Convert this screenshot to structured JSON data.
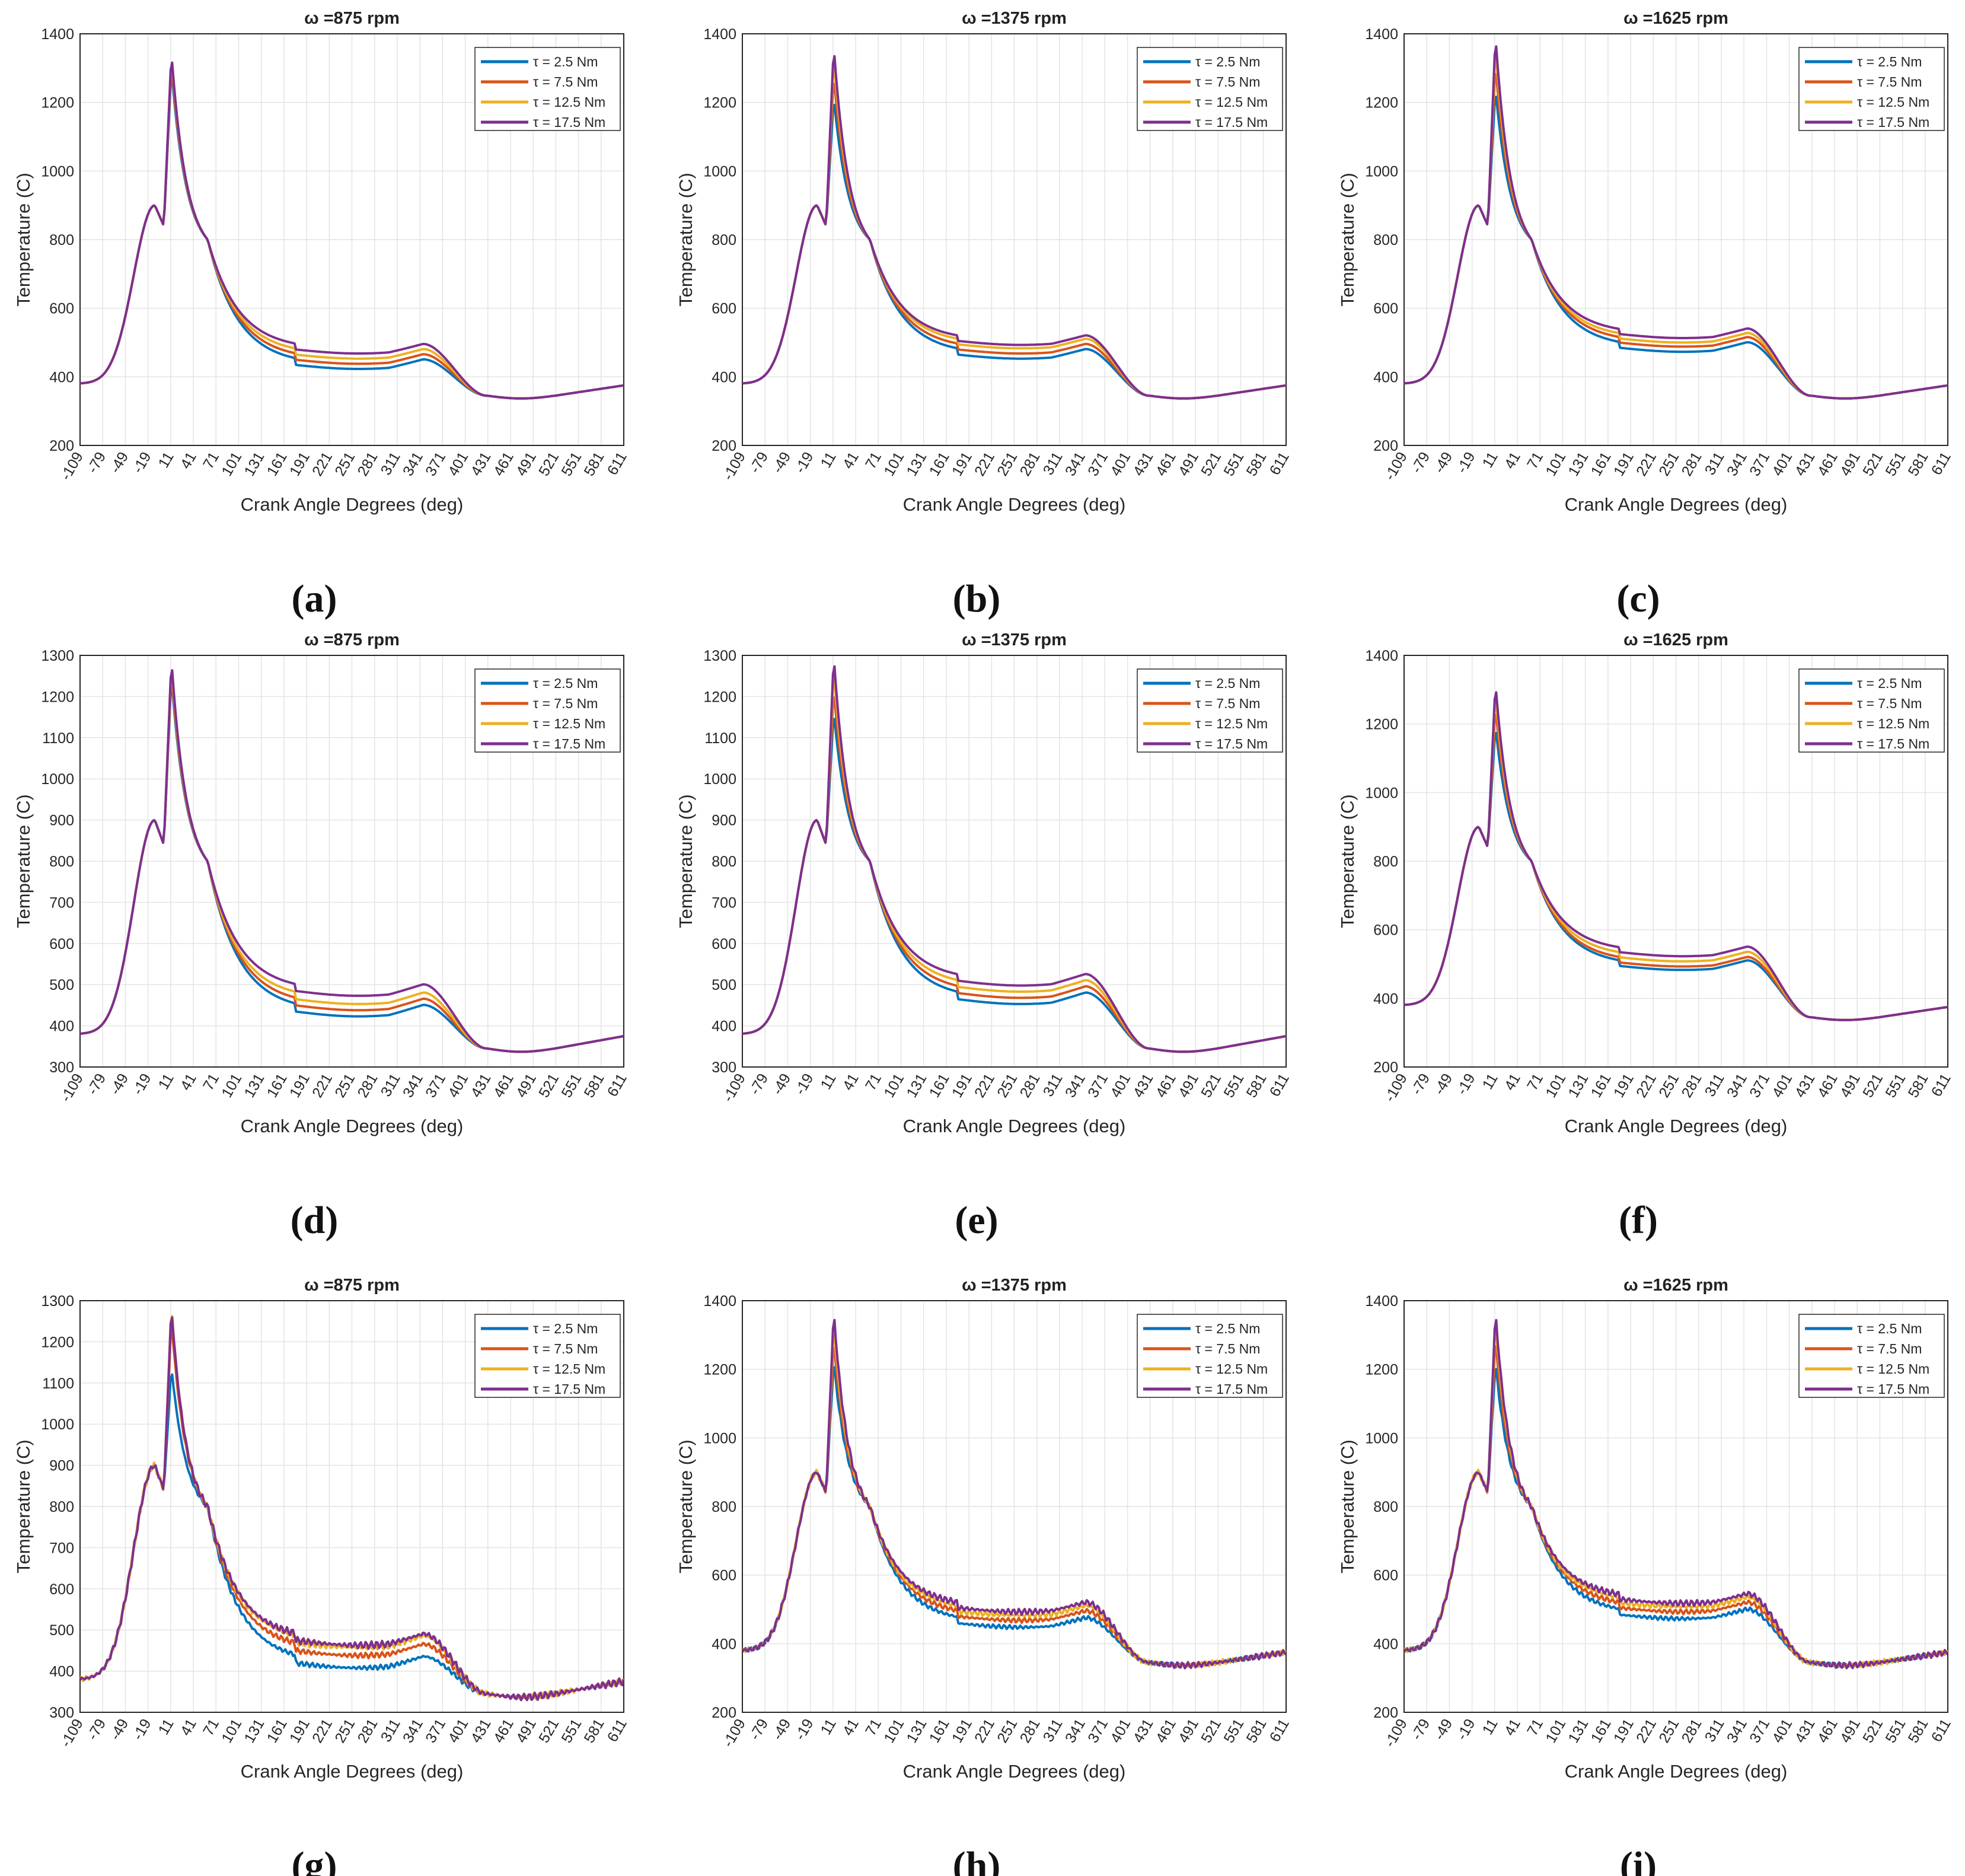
{
  "figure": {
    "series_names": [
      "τ = 2.5 Nm",
      "τ = 7.5 Nm",
      "τ = 12.5 Nm",
      "τ = 17.5 Nm"
    ],
    "series_colors": [
      "#0072BD",
      "#D95319",
      "#EDB120",
      "#7E2F8E"
    ]
  },
  "chart_data": [
    {
      "type": "line",
      "label": "(a)",
      "title": "ω =875 rpm",
      "xlabel": "Crank Angle Degrees (deg)",
      "ylabel": "Temperature (C)",
      "xlim": [
        -109,
        611
      ],
      "ylim": [
        200,
        1400
      ],
      "xticks": [
        -109,
        -79,
        -49,
        -19,
        11,
        41,
        71,
        101,
        131,
        161,
        191,
        221,
        251,
        281,
        311,
        341,
        371,
        401,
        431,
        461,
        491,
        521,
        551,
        581,
        611
      ],
      "yticks": [
        200,
        400,
        600,
        800,
        1000,
        1200,
        1400
      ],
      "legend_position": "top-right",
      "series": [
        {
          "name": "τ = 2.5 Nm",
          "peak": 1300
        },
        {
          "name": "τ = 7.5 Nm",
          "peak": 1320
        },
        {
          "name": "τ = 12.5 Nm",
          "peak": 1335
        },
        {
          "name": "τ = 17.5 Nm",
          "peak": 1345
        }
      ],
      "plateau": [
        435,
        450,
        465,
        480
      ]
    },
    {
      "type": "line",
      "label": "(b)",
      "title": "ω =1375 rpm",
      "xlabel": "Crank Angle Degrees (deg)",
      "ylabel": "Temperature (C)",
      "xlim": [
        -109,
        611
      ],
      "ylim": [
        200,
        1400
      ],
      "xticks": [
        -109,
        -79,
        -49,
        -19,
        11,
        41,
        71,
        101,
        131,
        161,
        191,
        221,
        251,
        281,
        311,
        341,
        371,
        401,
        431,
        461,
        491,
        521,
        551,
        581,
        611
      ],
      "yticks": [
        200,
        400,
        600,
        800,
        1000,
        1200,
        1400
      ],
      "legend_position": "top-right",
      "series": [
        {
          "name": "τ = 2.5 Nm",
          "peak": 1215
        },
        {
          "name": "τ = 7.5 Nm",
          "peak": 1280
        },
        {
          "name": "τ = 12.5 Nm",
          "peak": 1330
        },
        {
          "name": "τ = 17.5 Nm",
          "peak": 1365
        }
      ],
      "plateau": [
        465,
        480,
        495,
        505
      ]
    },
    {
      "type": "line",
      "label": "(c)",
      "title": "ω =1625 rpm",
      "xlabel": "Crank Angle Degrees (deg)",
      "ylabel": "Temperature (C)",
      "xlim": [
        -109,
        611
      ],
      "ylim": [
        200,
        1400
      ],
      "xticks": [
        -109,
        -79,
        -49,
        -19,
        11,
        41,
        71,
        101,
        131,
        161,
        191,
        221,
        251,
        281,
        311,
        341,
        371,
        401,
        431,
        461,
        491,
        521,
        551,
        581,
        611
      ],
      "yticks": [
        200,
        400,
        600,
        800,
        1000,
        1200,
        1400
      ],
      "legend_position": "top-right",
      "series": [
        {
          "name": "τ = 2.5 Nm",
          "peak": 1240
        },
        {
          "name": "τ = 7.5 Nm",
          "peak": 1310
        },
        {
          "name": "τ = 12.5 Nm",
          "peak": 1360
        },
        {
          "name": "τ = 17.5 Nm",
          "peak": 1395
        }
      ],
      "plateau": [
        485,
        500,
        512,
        525
      ]
    },
    {
      "type": "line",
      "label": "(d)",
      "title": "ω =875 rpm",
      "xlabel": "Crank Angle Degrees (deg)",
      "ylabel": "Temperature (C)",
      "xlim": [
        -109,
        611
      ],
      "ylim": [
        300,
        1300
      ],
      "xticks": [
        -109,
        -79,
        -49,
        -19,
        11,
        41,
        71,
        101,
        131,
        161,
        191,
        221,
        251,
        281,
        311,
        341,
        371,
        401,
        431,
        461,
        491,
        521,
        551,
        581,
        611
      ],
      "yticks": [
        300,
        400,
        500,
        600,
        700,
        800,
        900,
        1000,
        1100,
        1200,
        1300
      ],
      "legend_position": "top-right",
      "series": [
        {
          "name": "τ = 2.5 Nm",
          "peak": 1250
        },
        {
          "name": "τ = 7.5 Nm",
          "peak": 1265
        },
        {
          "name": "τ = 12.5 Nm",
          "peak": 1278
        },
        {
          "name": "τ = 17.5 Nm",
          "peak": 1290
        }
      ],
      "plateau": [
        435,
        450,
        465,
        485
      ]
    },
    {
      "type": "line",
      "label": "(e)",
      "title": "ω =1375 rpm",
      "xlabel": "Crank Angle Degrees (deg)",
      "ylabel": "Temperature (C)",
      "xlim": [
        -109,
        611
      ],
      "ylim": [
        300,
        1300
      ],
      "xticks": [
        -109,
        -79,
        -49,
        -19,
        11,
        41,
        71,
        101,
        131,
        161,
        191,
        221,
        251,
        281,
        311,
        341,
        371,
        401,
        431,
        461,
        491,
        521,
        551,
        581,
        611
      ],
      "yticks": [
        300,
        400,
        500,
        600,
        700,
        800,
        900,
        1000,
        1100,
        1200,
        1300
      ],
      "legend_position": "top-right",
      "series": [
        {
          "name": "τ = 2.5 Nm",
          "peak": 1165
        },
        {
          "name": "τ = 7.5 Nm",
          "peak": 1220
        },
        {
          "name": "τ = 12.5 Nm",
          "peak": 1265
        },
        {
          "name": "τ = 17.5 Nm",
          "peak": 1300
        }
      ],
      "plateau": [
        465,
        480,
        495,
        510
      ]
    },
    {
      "type": "line",
      "label": "(f)",
      "title": "ω =1625 rpm",
      "xlabel": "Crank Angle Degrees (deg)",
      "ylabel": "Temperature (C)",
      "xlim": [
        -109,
        611
      ],
      "ylim": [
        200,
        1400
      ],
      "xticks": [
        -109,
        -79,
        -49,
        -19,
        11,
        41,
        71,
        101,
        131,
        161,
        191,
        221,
        251,
        281,
        311,
        341,
        371,
        401,
        431,
        461,
        491,
        521,
        551,
        581,
        611
      ],
      "yticks": [
        200,
        400,
        600,
        800,
        1000,
        1200,
        1400
      ],
      "legend_position": "top-right",
      "series": [
        {
          "name": "τ = 2.5 Nm",
          "peak": 1195
        },
        {
          "name": "τ = 7.5 Nm",
          "peak": 1250
        },
        {
          "name": "τ = 12.5 Nm",
          "peak": 1290
        },
        {
          "name": "τ = 17.5 Nm",
          "peak": 1320
        }
      ],
      "plateau": [
        495,
        505,
        520,
        535
      ]
    },
    {
      "type": "line",
      "label": "(g)",
      "title": "ω =875 rpm",
      "xlabel": "Crank Angle Degrees (deg)",
      "ylabel": "Temperature (C)",
      "xlim": [
        -109,
        611
      ],
      "ylim": [
        300,
        1300
      ],
      "xticks": [
        -109,
        -79,
        -49,
        -19,
        11,
        41,
        71,
        101,
        131,
        161,
        191,
        221,
        251,
        281,
        311,
        341,
        371,
        401,
        431,
        461,
        491,
        521,
        551,
        581,
        611
      ],
      "yticks": [
        300,
        400,
        500,
        600,
        700,
        800,
        900,
        1000,
        1100,
        1200,
        1300
      ],
      "legend_position": "top-right",
      "series": [
        {
          "name": "τ = 2.5 Nm",
          "peak": 1140
        },
        {
          "name": "τ = 7.5 Nm",
          "peak": 1255
        },
        {
          "name": "τ = 12.5 Nm",
          "peak": 1290
        },
        {
          "name": "τ = 17.5 Nm",
          "peak": 1285
        }
      ],
      "plateau": [
        420,
        450,
        470,
        475
      ]
    },
    {
      "type": "line",
      "label": "(h)",
      "title": "ω =1375 rpm",
      "xlabel": "Crank Angle Degrees (deg)",
      "ylabel": "Temperature (C)",
      "xlim": [
        -109,
        611
      ],
      "ylim": [
        200,
        1400
      ],
      "xticks": [
        -109,
        -79,
        -49,
        -19,
        11,
        41,
        71,
        101,
        131,
        161,
        191,
        221,
        251,
        281,
        311,
        341,
        371,
        401,
        431,
        461,
        491,
        521,
        551,
        581,
        611
      ],
      "yticks": [
        200,
        400,
        600,
        800,
        1000,
        1200,
        1400
      ],
      "legend_position": "top-right",
      "series": [
        {
          "name": "τ = 2.5 Nm",
          "peak": 1225
        },
        {
          "name": "τ = 7.5 Nm",
          "peak": 1285
        },
        {
          "name": "τ = 12.5 Nm",
          "peak": 1330
        },
        {
          "name": "τ = 17.5 Nm",
          "peak": 1370
        }
      ],
      "plateau": [
        460,
        480,
        495,
        505
      ]
    },
    {
      "type": "line",
      "label": "(i)",
      "title": "ω =1625 rpm",
      "xlabel": "Crank Angle Degrees (deg)",
      "ylabel": "Temperature (C)",
      "xlim": [
        -109,
        611
      ],
      "ylim": [
        200,
        1400
      ],
      "xticks": [
        -109,
        -79,
        -49,
        -19,
        11,
        41,
        71,
        101,
        131,
        161,
        191,
        221,
        251,
        281,
        311,
        341,
        371,
        401,
        431,
        461,
        491,
        521,
        551,
        581,
        611
      ],
      "yticks": [
        200,
        400,
        600,
        800,
        1000,
        1200,
        1400
      ],
      "legend_position": "top-right",
      "series": [
        {
          "name": "τ = 2.5 Nm",
          "peak": 1220
        },
        {
          "name": "τ = 7.5 Nm",
          "peak": 1290
        },
        {
          "name": "τ = 12.5 Nm",
          "peak": 1340
        },
        {
          "name": "τ = 17.5 Nm",
          "peak": 1370
        }
      ],
      "plateau": [
        485,
        505,
        520,
        530
      ]
    }
  ]
}
